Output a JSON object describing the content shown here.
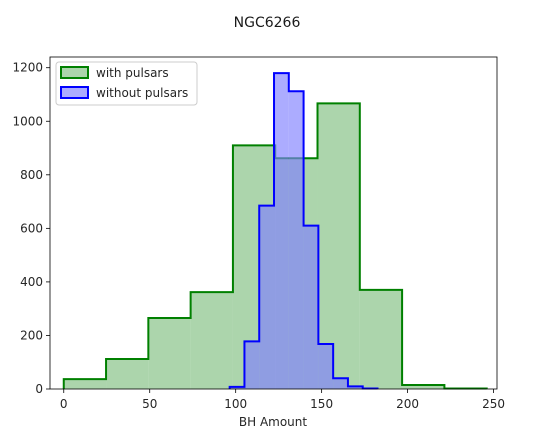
{
  "chart_data": {
    "type": "histogram",
    "title": "NGC6266",
    "xlabel": "BH Amount",
    "ylabel": "",
    "xlim": [
      -8,
      252
    ],
    "ylim": [
      0,
      1240
    ],
    "xticks": [
      0,
      50,
      100,
      150,
      200,
      250
    ],
    "yticks": [
      0,
      200,
      400,
      600,
      800,
      1000,
      1200
    ],
    "grid": false,
    "legend_position": "top-left",
    "series": [
      {
        "name": "with pulsars",
        "edge_color": "#008000",
        "fill_color": "#7fbf7f",
        "fill_opacity": 0.65,
        "bin_edges": [
          0,
          24.6,
          49.2,
          73.8,
          98.4,
          123,
          147.6,
          172.2,
          196.8,
          221.4,
          246
        ],
        "counts": [
          37,
          112,
          265,
          362,
          910,
          862,
          1067,
          370,
          15,
          2
        ]
      },
      {
        "name": "without pulsars",
        "edge_color": "#0000ff",
        "fill_color": "#7f7fff",
        "fill_opacity": 0.65,
        "bin_edges": [
          96.5,
          105.1,
          113.7,
          122.3,
          130.9,
          139.5,
          148.1,
          156.7,
          165.3,
          173.9,
          182.5
        ],
        "counts": [
          8,
          178,
          685,
          1180,
          1112,
          610,
          168,
          40,
          10,
          2
        ]
      }
    ]
  }
}
